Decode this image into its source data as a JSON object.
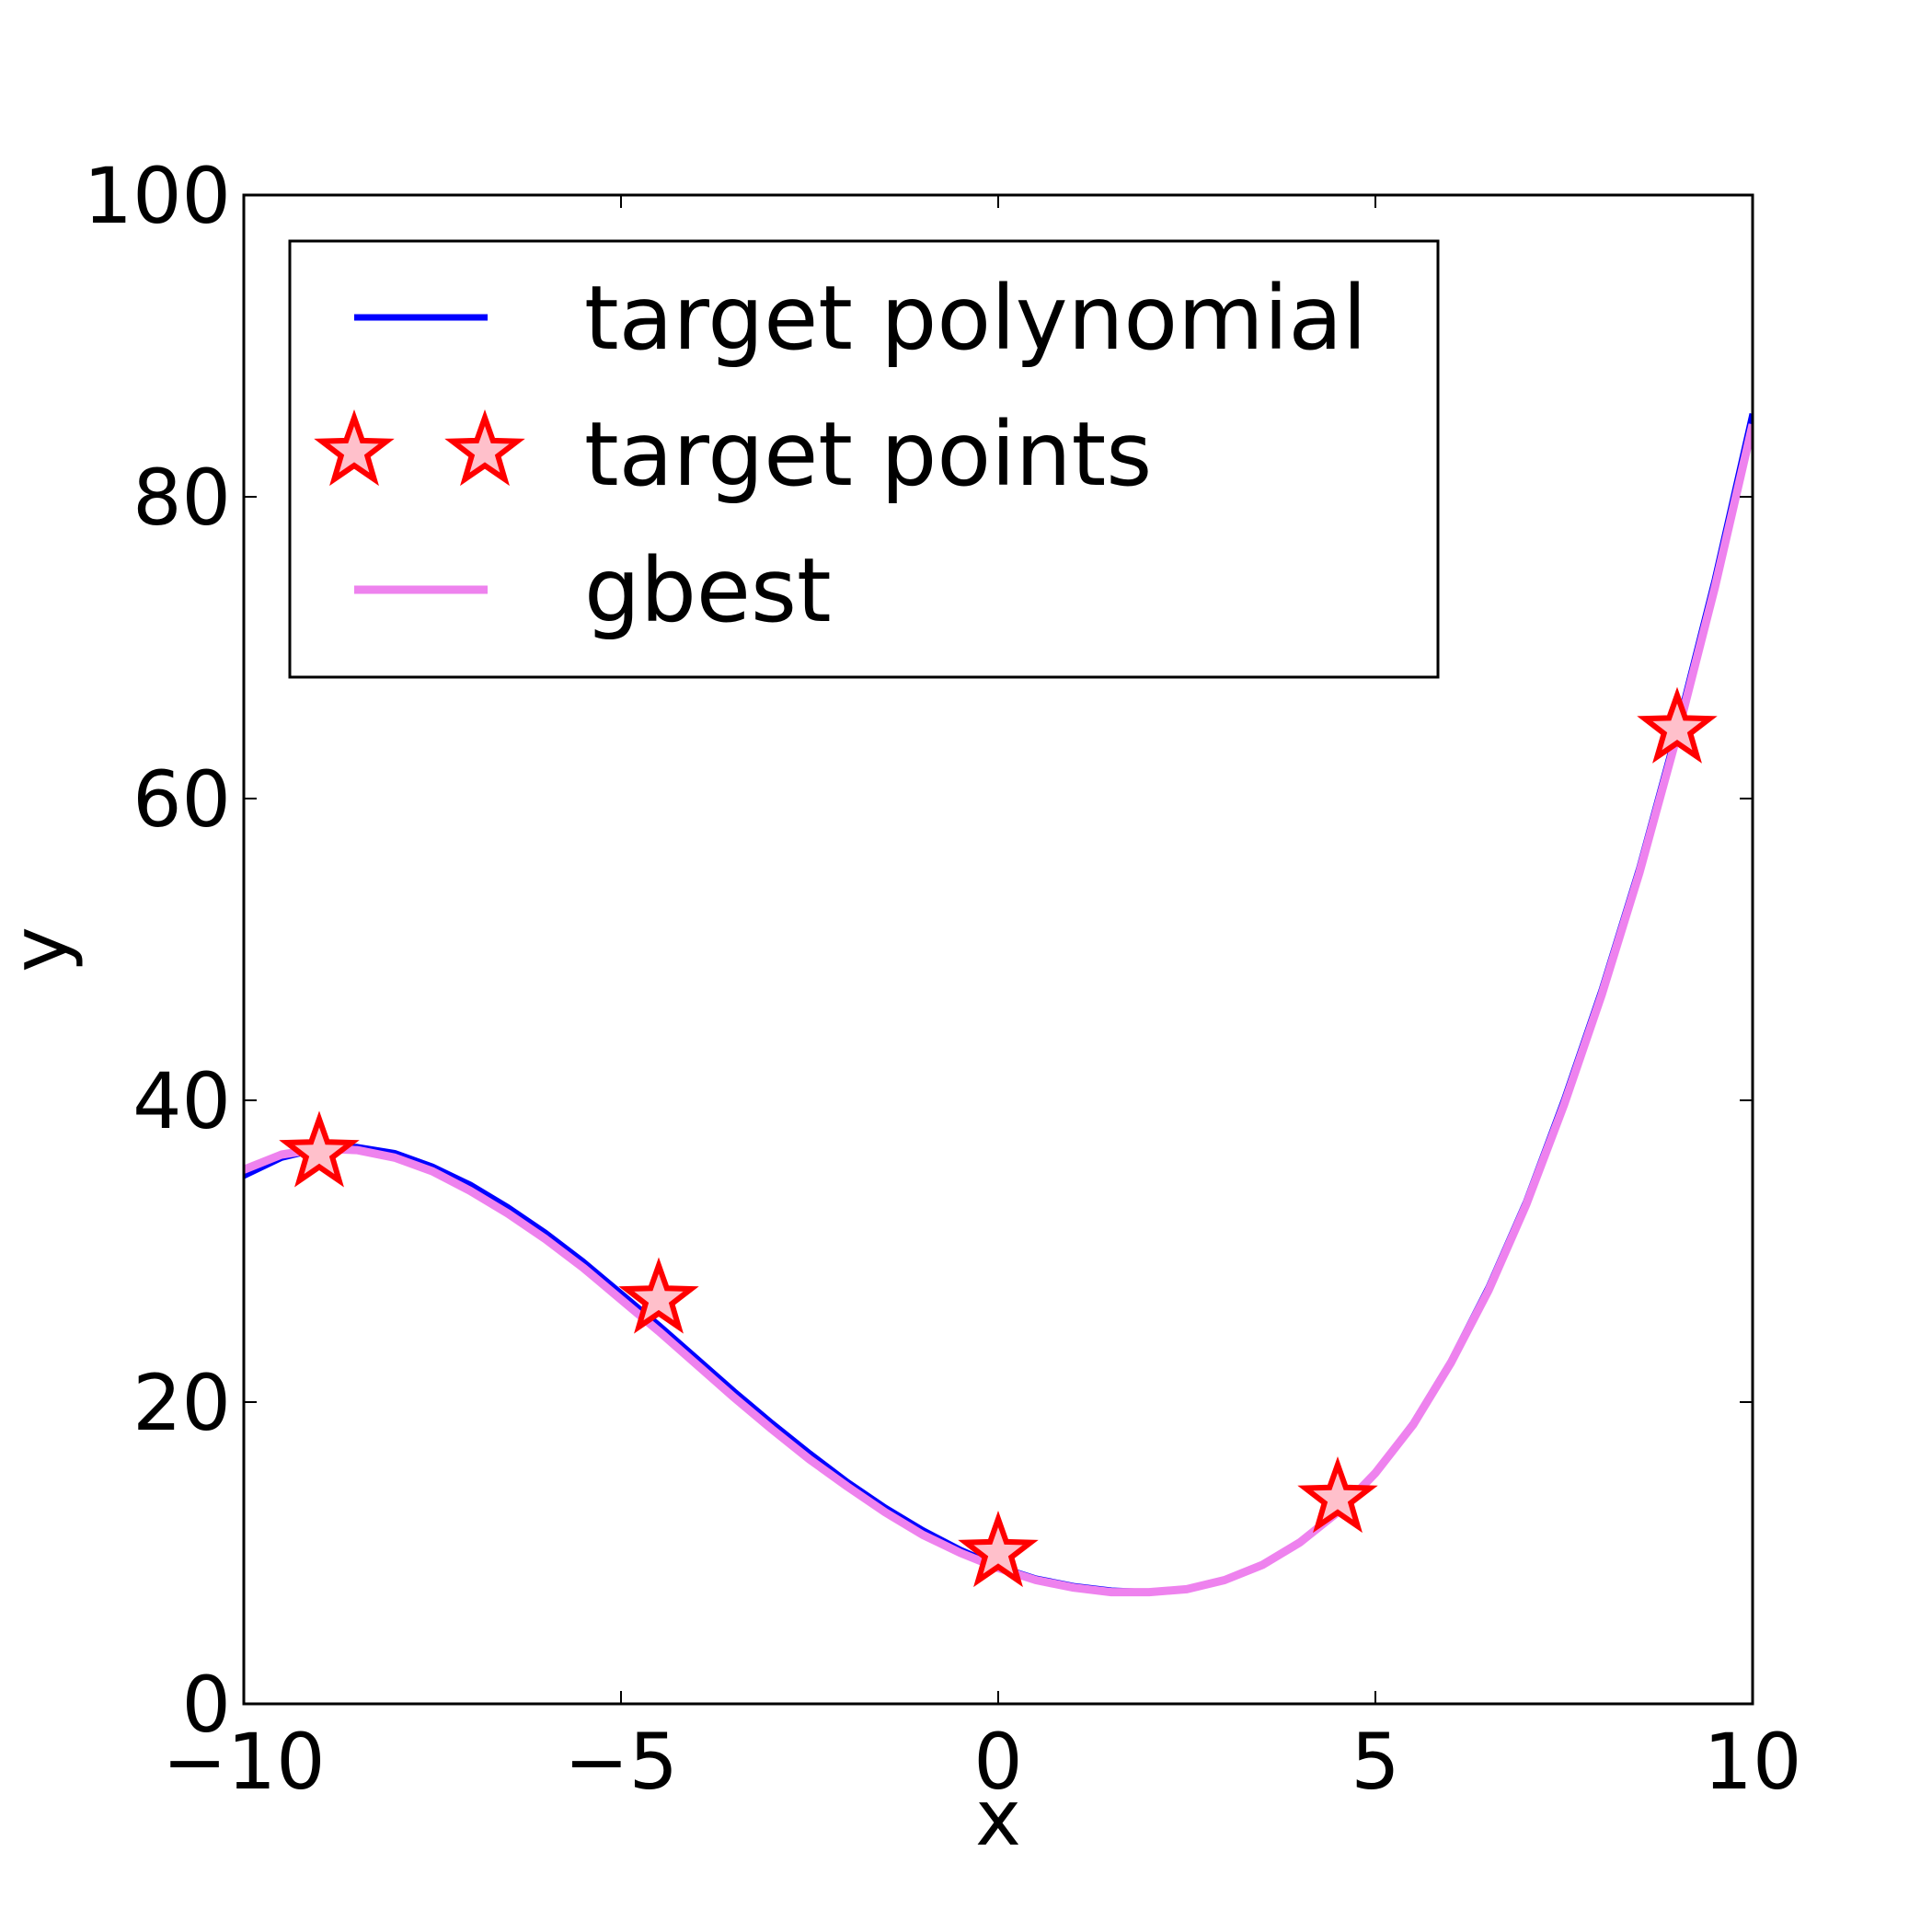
{
  "chart_data": {
    "type": "line",
    "title": "",
    "xlabel": "x",
    "ylabel": "y",
    "xlim": [
      -10,
      10
    ],
    "ylim": [
      0,
      100
    ],
    "xticks": [
      -10,
      -5,
      0,
      5,
      10
    ],
    "xtick_labels": [
      "−10",
      "−5",
      "0",
      "5",
      "10"
    ],
    "yticks": [
      0,
      20,
      40,
      60,
      80,
      100
    ],
    "ytick_labels": [
      "0",
      "20",
      "40",
      "60",
      "80",
      "100"
    ],
    "grid": false,
    "legend_position": "top-left",
    "series": [
      {
        "name": "target polynomial",
        "kind": "line",
        "color": "#0000ff",
        "x": [
          -10,
          -9.5,
          -9,
          -8.5,
          -8,
          -7.5,
          -7,
          -6.5,
          -6,
          -5.5,
          -5,
          -4.5,
          -4,
          -3.5,
          -3,
          -2.5,
          -2,
          -1.5,
          -1,
          -0.5,
          0,
          0.5,
          1,
          1.5,
          2,
          2.5,
          3,
          3.5,
          4,
          4.5,
          5,
          5.5,
          6,
          6.5,
          7,
          7.5,
          8,
          8.5,
          9,
          9.5,
          10
        ],
        "y": [
          35.0,
          36.2,
          36.8,
          36.9,
          36.5,
          35.6,
          34.4,
          32.9,
          31.2,
          29.3,
          27.2,
          25.1,
          22.9,
          20.7,
          18.6,
          16.6,
          14.7,
          13.0,
          11.5,
          10.2,
          9.1,
          8.3,
          7.8,
          7.5,
          7.4,
          7.6,
          8.2,
          9.2,
          10.7,
          12.7,
          15.3,
          18.6,
          22.7,
          27.6,
          33.3,
          40.0,
          47.3,
          55.4,
          64.6,
          74.5,
          85.5
        ]
      },
      {
        "name": "target points",
        "kind": "scatter",
        "marker": "star",
        "color": "#ff0000",
        "fill": "#ffc0cb",
        "x": [
          -9,
          -4.5,
          0,
          4.5,
          9
        ],
        "y": [
          36.5,
          26.8,
          10.0,
          13.6,
          64.6
        ]
      },
      {
        "name": "gbest",
        "kind": "line",
        "color": "#ee82ee",
        "x": [
          -10,
          -9.5,
          -9,
          -8.5,
          -8,
          -7.5,
          -7,
          -6.5,
          -6,
          -5.5,
          -5,
          -4.5,
          -4,
          -3.5,
          -3,
          -2.5,
          -2,
          -1.5,
          -1,
          -0.5,
          0,
          0.5,
          1,
          1.5,
          2,
          2.5,
          3,
          3.5,
          4,
          4.5,
          5,
          5.5,
          6,
          6.5,
          7,
          7.5,
          8,
          8.5,
          9,
          9.5,
          10
        ],
        "y": [
          35.4,
          36.4,
          36.8,
          36.7,
          36.2,
          35.3,
          34.0,
          32.5,
          30.8,
          28.9,
          26.8,
          24.7,
          22.5,
          20.3,
          18.2,
          16.2,
          14.4,
          12.7,
          11.2,
          10.0,
          9.0,
          8.2,
          7.7,
          7.4,
          7.4,
          7.6,
          8.2,
          9.2,
          10.7,
          12.7,
          15.3,
          18.5,
          22.6,
          27.4,
          33.1,
          39.7,
          47.0,
          55.1,
          64.2,
          74.0,
          84.8
        ]
      }
    ]
  }
}
